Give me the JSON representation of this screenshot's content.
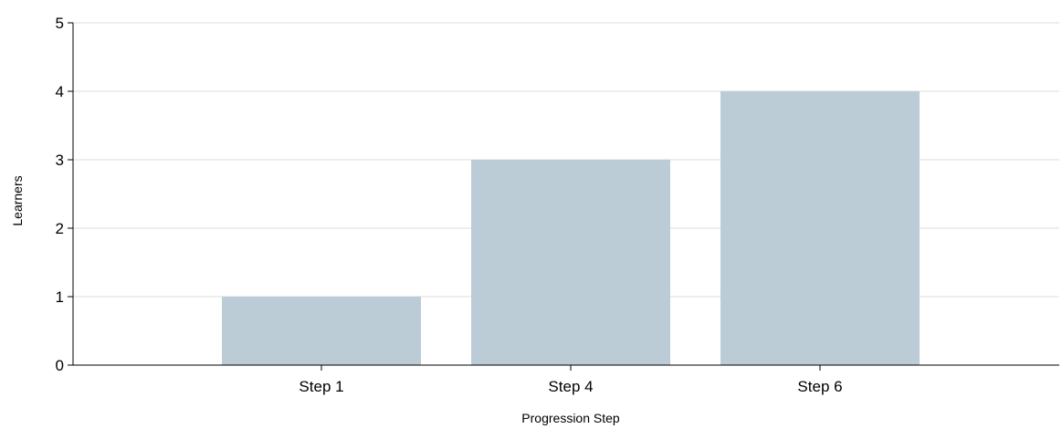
{
  "chart_data": {
    "type": "bar",
    "categories": [
      "Step 1",
      "Step 4",
      "Step 6"
    ],
    "values": [
      1,
      3,
      4
    ],
    "title": "",
    "xlabel": "Progression Step",
    "ylabel": "Learners",
    "ylim": [
      0,
      5
    ],
    "yticks": [
      "0",
      "1",
      "2",
      "3",
      "4",
      "5"
    ],
    "grid": true,
    "legend": "none",
    "bar_color": "#bbccd7",
    "grid_color": "#dddddd",
    "axis_color": "#000000"
  }
}
